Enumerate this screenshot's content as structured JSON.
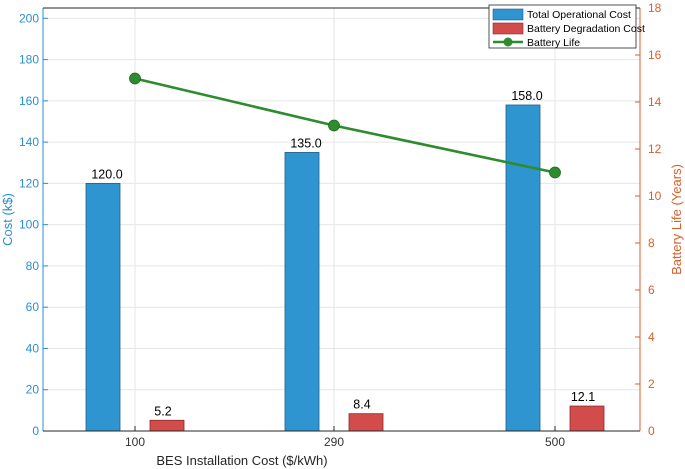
{
  "chart_data": {
    "type": "bar+line",
    "categories": [
      "100",
      "290",
      "500"
    ],
    "xlabel": "BES Installation Cost ($/kWh)",
    "ylabel_left": "Cost (k$)",
    "ylabel_right": "Battery Life (Years)",
    "ylim_left": [
      0,
      205
    ],
    "ylim_right": [
      0,
      18
    ],
    "yticks_left": [
      0,
      20,
      40,
      60,
      80,
      100,
      120,
      140,
      160,
      180,
      200
    ],
    "yticks_right": [
      0,
      2,
      4,
      6,
      8,
      10,
      12,
      14,
      16,
      18
    ],
    "grid": true,
    "legend_position": "top-right",
    "series": [
      {
        "name": "Total Operational Cost",
        "kind": "bar",
        "axis": "left",
        "color": "#2f95d0",
        "values": [
          120.0,
          135.0,
          158.0
        ],
        "labels": [
          "120.0",
          "135.0",
          "158.0"
        ]
      },
      {
        "name": "Battery Degradation Cost",
        "kind": "bar",
        "axis": "left",
        "color": "#d14c4a",
        "values": [
          5.2,
          8.4,
          12.1
        ],
        "labels": [
          "5.2",
          "8.4",
          "12.1"
        ]
      },
      {
        "name": "Battery Life",
        "kind": "line",
        "axis": "right",
        "color": "#2e8b2e",
        "values": [
          15,
          13,
          11
        ]
      }
    ],
    "colors": {
      "left_axis": "#2b8fd0",
      "right_axis": "#d95f2b",
      "grid": "#e6e6e6",
      "frame": "#262626"
    }
  }
}
